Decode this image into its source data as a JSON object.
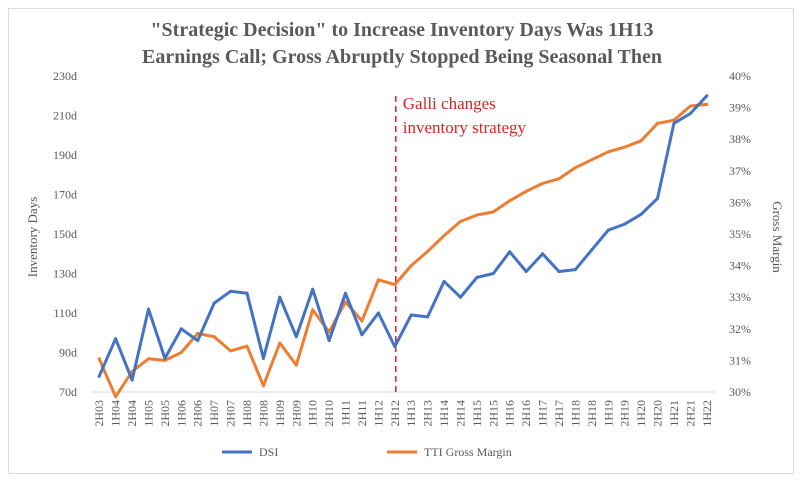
{
  "chart_data": {
    "type": "line",
    "title_lines": [
      "\"Strategic Decision\" to Increase Inventory Days Was 1H13",
      "Earnings Call; Gross Abruptly Stopped Being Seasonal Then"
    ],
    "ylabel_left": "Inventory Days",
    "ylabel_right": "Gross Margin",
    "ylim_left": [
      70,
      230
    ],
    "ylim_right": [
      30,
      40
    ],
    "y_ticks_left": [
      "70d",
      "90d",
      "110d",
      "130d",
      "150d",
      "170d",
      "190d",
      "210d",
      "230d"
    ],
    "y_ticks_left_values": [
      70,
      90,
      110,
      130,
      150,
      170,
      190,
      210,
      230
    ],
    "y_ticks_right": [
      "30%",
      "31%",
      "32%",
      "33%",
      "34%",
      "35%",
      "36%",
      "37%",
      "38%",
      "39%",
      "40%"
    ],
    "y_ticks_right_values": [
      30,
      31,
      32,
      33,
      34,
      35,
      36,
      37,
      38,
      39,
      40
    ],
    "categories": [
      "2H03",
      "1H04",
      "2H04",
      "1H05",
      "2H05",
      "1H06",
      "2H06",
      "1H07",
      "2H07",
      "1H08",
      "2H08",
      "1H09",
      "2H09",
      "1H10",
      "2H10",
      "1H11",
      "2H11",
      "1H12",
      "2H12",
      "1H13",
      "2H13",
      "1H14",
      "2H14",
      "1H15",
      "2H15",
      "1H16",
      "2H16",
      "1H17",
      "2H17",
      "1H18",
      "2H18",
      "1H19",
      "2H19",
      "1H20",
      "2H20",
      "1H21",
      "2H21",
      "1H22"
    ],
    "series": [
      {
        "name": "DSI",
        "axis": "left",
        "color": "#4472c4",
        "values": [
          78,
          97,
          76,
          112,
          87,
          102,
          96,
          115,
          121,
          120,
          87,
          118,
          98,
          122,
          96,
          120,
          99,
          110,
          93,
          109,
          108,
          126,
          118,
          128,
          130,
          141,
          131,
          140,
          131,
          132,
          142,
          152,
          155,
          160,
          168,
          206,
          211,
          220
        ]
      },
      {
        "name": "TTI Gross Margin",
        "axis": "right",
        "color": "#ed7d31",
        "values": [
          31.05,
          29.85,
          30.65,
          31.05,
          31.0,
          31.25,
          31.85,
          31.75,
          31.3,
          31.45,
          30.2,
          31.55,
          30.85,
          32.6,
          31.9,
          32.85,
          32.25,
          33.55,
          33.4,
          34.0,
          34.45,
          34.95,
          35.4,
          35.6,
          35.7,
          36.05,
          36.35,
          36.6,
          36.75,
          37.1,
          37.35,
          37.6,
          37.75,
          37.95,
          38.5,
          38.6,
          39.05,
          39.1
        ]
      }
    ],
    "annotation": {
      "lines": [
        "Galli changes",
        "inventory strategy"
      ],
      "at_category": "2H12",
      "color": "#e02020"
    },
    "legend": {
      "position": "bottom"
    }
  }
}
